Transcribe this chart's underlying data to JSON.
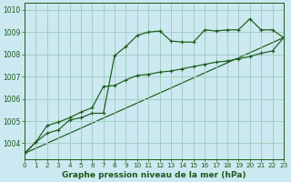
{
  "title": "Graphe pression niveau de la mer (hPa)",
  "bg_color": "#cce8f0",
  "grid_color": "#99ccbb",
  "line_color": "#1a5c1a",
  "xlim": [
    0,
    23
  ],
  "ylim": [
    1003.3,
    1010.3
  ],
  "yticks": [
    1004,
    1005,
    1006,
    1007,
    1008,
    1009,
    1010
  ],
  "xticks": [
    0,
    1,
    2,
    3,
    4,
    5,
    6,
    7,
    8,
    9,
    10,
    11,
    12,
    13,
    14,
    15,
    16,
    17,
    18,
    19,
    20,
    21,
    22,
    23
  ],
  "curve1": [
    [
      0,
      1003.55
    ],
    [
      1,
      1004.05
    ],
    [
      2,
      1004.45
    ],
    [
      3,
      1004.6
    ],
    [
      4,
      1005.05
    ],
    [
      5,
      1005.15
    ],
    [
      6,
      1005.35
    ],
    [
      7,
      1005.35
    ],
    [
      8,
      1007.95
    ],
    [
      9,
      1008.35
    ],
    [
      10,
      1008.85
    ],
    [
      11,
      1009.0
    ],
    [
      12,
      1009.05
    ],
    [
      13,
      1008.6
    ],
    [
      14,
      1008.55
    ],
    [
      15,
      1008.55
    ],
    [
      16,
      1009.1
    ],
    [
      17,
      1009.05
    ],
    [
      18,
      1009.1
    ],
    [
      19,
      1009.1
    ],
    [
      20,
      1009.6
    ],
    [
      21,
      1009.1
    ],
    [
      22,
      1009.1
    ],
    [
      23,
      1008.75
    ]
  ],
  "curve2": [
    [
      0,
      1003.55
    ],
    [
      1,
      1004.05
    ],
    [
      2,
      1004.8
    ],
    [
      3,
      1004.95
    ],
    [
      4,
      1005.15
    ],
    [
      5,
      1005.4
    ],
    [
      6,
      1005.6
    ],
    [
      7,
      1006.55
    ],
    [
      8,
      1006.6
    ],
    [
      9,
      1006.85
    ],
    [
      10,
      1007.05
    ],
    [
      11,
      1007.1
    ],
    [
      12,
      1007.2
    ],
    [
      13,
      1007.25
    ],
    [
      14,
      1007.35
    ],
    [
      15,
      1007.45
    ],
    [
      16,
      1007.55
    ],
    [
      17,
      1007.65
    ],
    [
      18,
      1007.7
    ],
    [
      19,
      1007.8
    ],
    [
      20,
      1007.9
    ],
    [
      21,
      1008.05
    ],
    [
      22,
      1008.15
    ],
    [
      23,
      1008.75
    ]
  ],
  "line_straight": [
    [
      0,
      1003.55
    ],
    [
      23,
      1008.75
    ]
  ],
  "ylabel_fontsize": 5.5,
  "xlabel_fontsize": 6.5,
  "tick_fontsize": 5.2
}
